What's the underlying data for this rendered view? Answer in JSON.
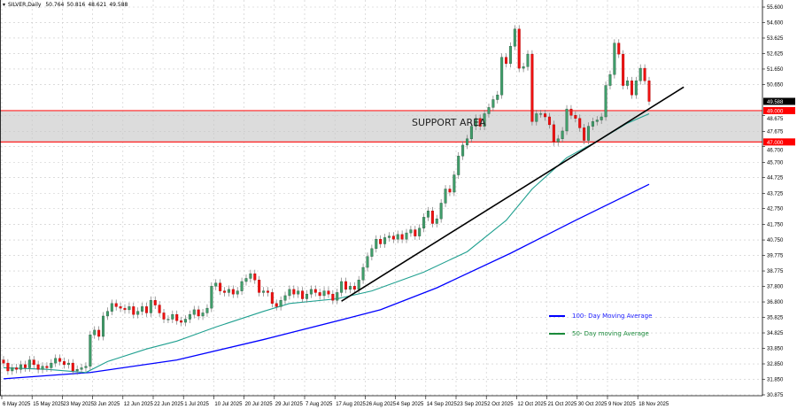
{
  "header": {
    "symbol": "SILVER,Daily",
    "open": "50.764",
    "high": "50.816",
    "low": "48.621",
    "close": "49.588"
  },
  "annotations": {
    "support_label": "SUPPORT AREA",
    "legend": [
      {
        "label": "100- Day Moving Average",
        "color": "#0000ff"
      },
      {
        "label": "50- Day moving Average",
        "color": "#1a8a3a"
      }
    ]
  },
  "price_tags": [
    {
      "value": "49.588",
      "bg": "#000000"
    },
    {
      "value": "49.000",
      "bg": "#ff0000"
    },
    {
      "value": "47.000",
      "bg": "#ff0000"
    }
  ],
  "chart_data": {
    "type": "candlestick",
    "title": "",
    "ylim": [
      30.875,
      55.6
    ],
    "y_ticks": [
      "55.600",
      "54.600",
      "53.625",
      "52.625",
      "51.650",
      "50.650",
      "48.675",
      "47.675",
      "46.700",
      "45.700",
      "44.725",
      "43.725",
      "42.750",
      "41.750",
      "40.750",
      "39.775",
      "38.775",
      "37.800",
      "36.800",
      "35.825",
      "34.825",
      "33.850",
      "32.850",
      "31.850",
      "30.875"
    ],
    "x_ticks": [
      "6 May 2025",
      "15 May 2025",
      "23 May 2025",
      "3 Jun 2025",
      "12 Jun 2025",
      "22 Jun 2025",
      "1 Jul 2025",
      "10 Jul 2025",
      "20 Jul 2025",
      "29 Jul 2025",
      "7 Aug 2025",
      "17 Aug 2025",
      "26 Aug 2025",
      "4 Sep 2025",
      "14 Sep 2025",
      "23 Sep 2025",
      "2 Oct 2025",
      "12 Oct 2025",
      "21 Oct 2025",
      "30 Oct 2025",
      "9 Nov 2025",
      "18 Nov 2025"
    ],
    "grid": true,
    "closes": [
      32.9,
      32.4,
      32.6,
      32.5,
      32.8,
      32.6,
      33.1,
      32.8,
      32.5,
      32.7,
      32.6,
      32.9,
      33.2,
      33.0,
      32.8,
      32.9,
      32.4,
      32.5,
      32.6,
      32.7,
      34.7,
      35.0,
      34.6,
      35.9,
      36.2,
      36.7,
      36.5,
      36.4,
      36.3,
      36.5,
      36.0,
      36.2,
      36.5,
      36.1,
      36.9,
      36.6,
      36.1,
      35.7,
      35.7,
      36.0,
      35.6,
      35.5,
      35.7,
      36.0,
      36.3,
      35.9,
      36.1,
      36.4,
      37.8,
      38.0,
      37.5,
      37.4,
      37.6,
      37.3,
      37.5,
      38.1,
      38.3,
      38.6,
      38.2,
      37.4,
      37.5,
      37.4,
      36.7,
      36.5,
      36.9,
      37.2,
      37.6,
      37.3,
      37.5,
      37.0,
      37.3,
      37.6,
      37.4,
      37.2,
      37.5,
      37.3,
      36.9,
      37.4,
      38.1,
      37.6,
      37.8,
      37.6,
      38.2,
      39.0,
      39.7,
      40.2,
      40.8,
      40.5,
      40.9,
      41.0,
      40.8,
      41.1,
      40.8,
      41.2,
      41.4,
      41.0,
      41.5,
      42.2,
      42.6,
      41.8,
      42.1,
      43.1,
      44.0,
      43.8,
      44.9,
      46.1,
      46.8,
      47.2,
      48.0,
      48.5,
      48.0,
      48.8,
      49.2,
      49.7,
      50.0,
      52.4,
      52.0,
      53.1,
      54.2,
      51.7,
      51.8,
      52.6,
      48.3,
      48.8,
      48.8,
      48.6,
      48.1,
      47.0,
      47.2,
      47.7,
      49.1,
      48.7,
      48.5,
      47.9,
      47.1,
      48.0,
      48.3,
      48.4,
      48.6,
      50.6,
      51.3,
      53.3,
      52.6,
      50.6,
      50.9,
      50.0,
      50.9,
      51.7,
      50.9,
      49.588
    ],
    "series": [
      {
        "name": "100- Day Moving Average",
        "color": "#0000ff",
        "points": [
          [
            0,
            31.9
          ],
          [
            20,
            32.3
          ],
          [
            40,
            33.1
          ],
          [
            60,
            34.4
          ],
          [
            80,
            35.8
          ],
          [
            87,
            36.3
          ],
          [
            100,
            37.7
          ],
          [
            117,
            39.9
          ],
          [
            132,
            42.0
          ],
          [
            149,
            44.3
          ]
        ]
      },
      {
        "name": "50- Day moving Average",
        "color": "#20a090",
        "points": [
          [
            0,
            32.6
          ],
          [
            10,
            32.5
          ],
          [
            19,
            32.3
          ],
          [
            24,
            33.0
          ],
          [
            33,
            33.8
          ],
          [
            40,
            34.3
          ],
          [
            49,
            35.2
          ],
          [
            60,
            36.2
          ],
          [
            66,
            36.7
          ],
          [
            77,
            37.0
          ],
          [
            85,
            37.5
          ],
          [
            97,
            38.7
          ],
          [
            107,
            40.0
          ],
          [
            116,
            42.0
          ],
          [
            122,
            44.0
          ],
          [
            130,
            46.0
          ],
          [
            138,
            47.2
          ],
          [
            144,
            48.2
          ],
          [
            149,
            48.8
          ]
        ]
      }
    ],
    "support_zone": [
      47.0,
      49.0
    ],
    "trendline": {
      "from": [
        78,
        36.85
      ],
      "to": [
        157,
        50.5
      ],
      "color": "#000000"
    }
  }
}
